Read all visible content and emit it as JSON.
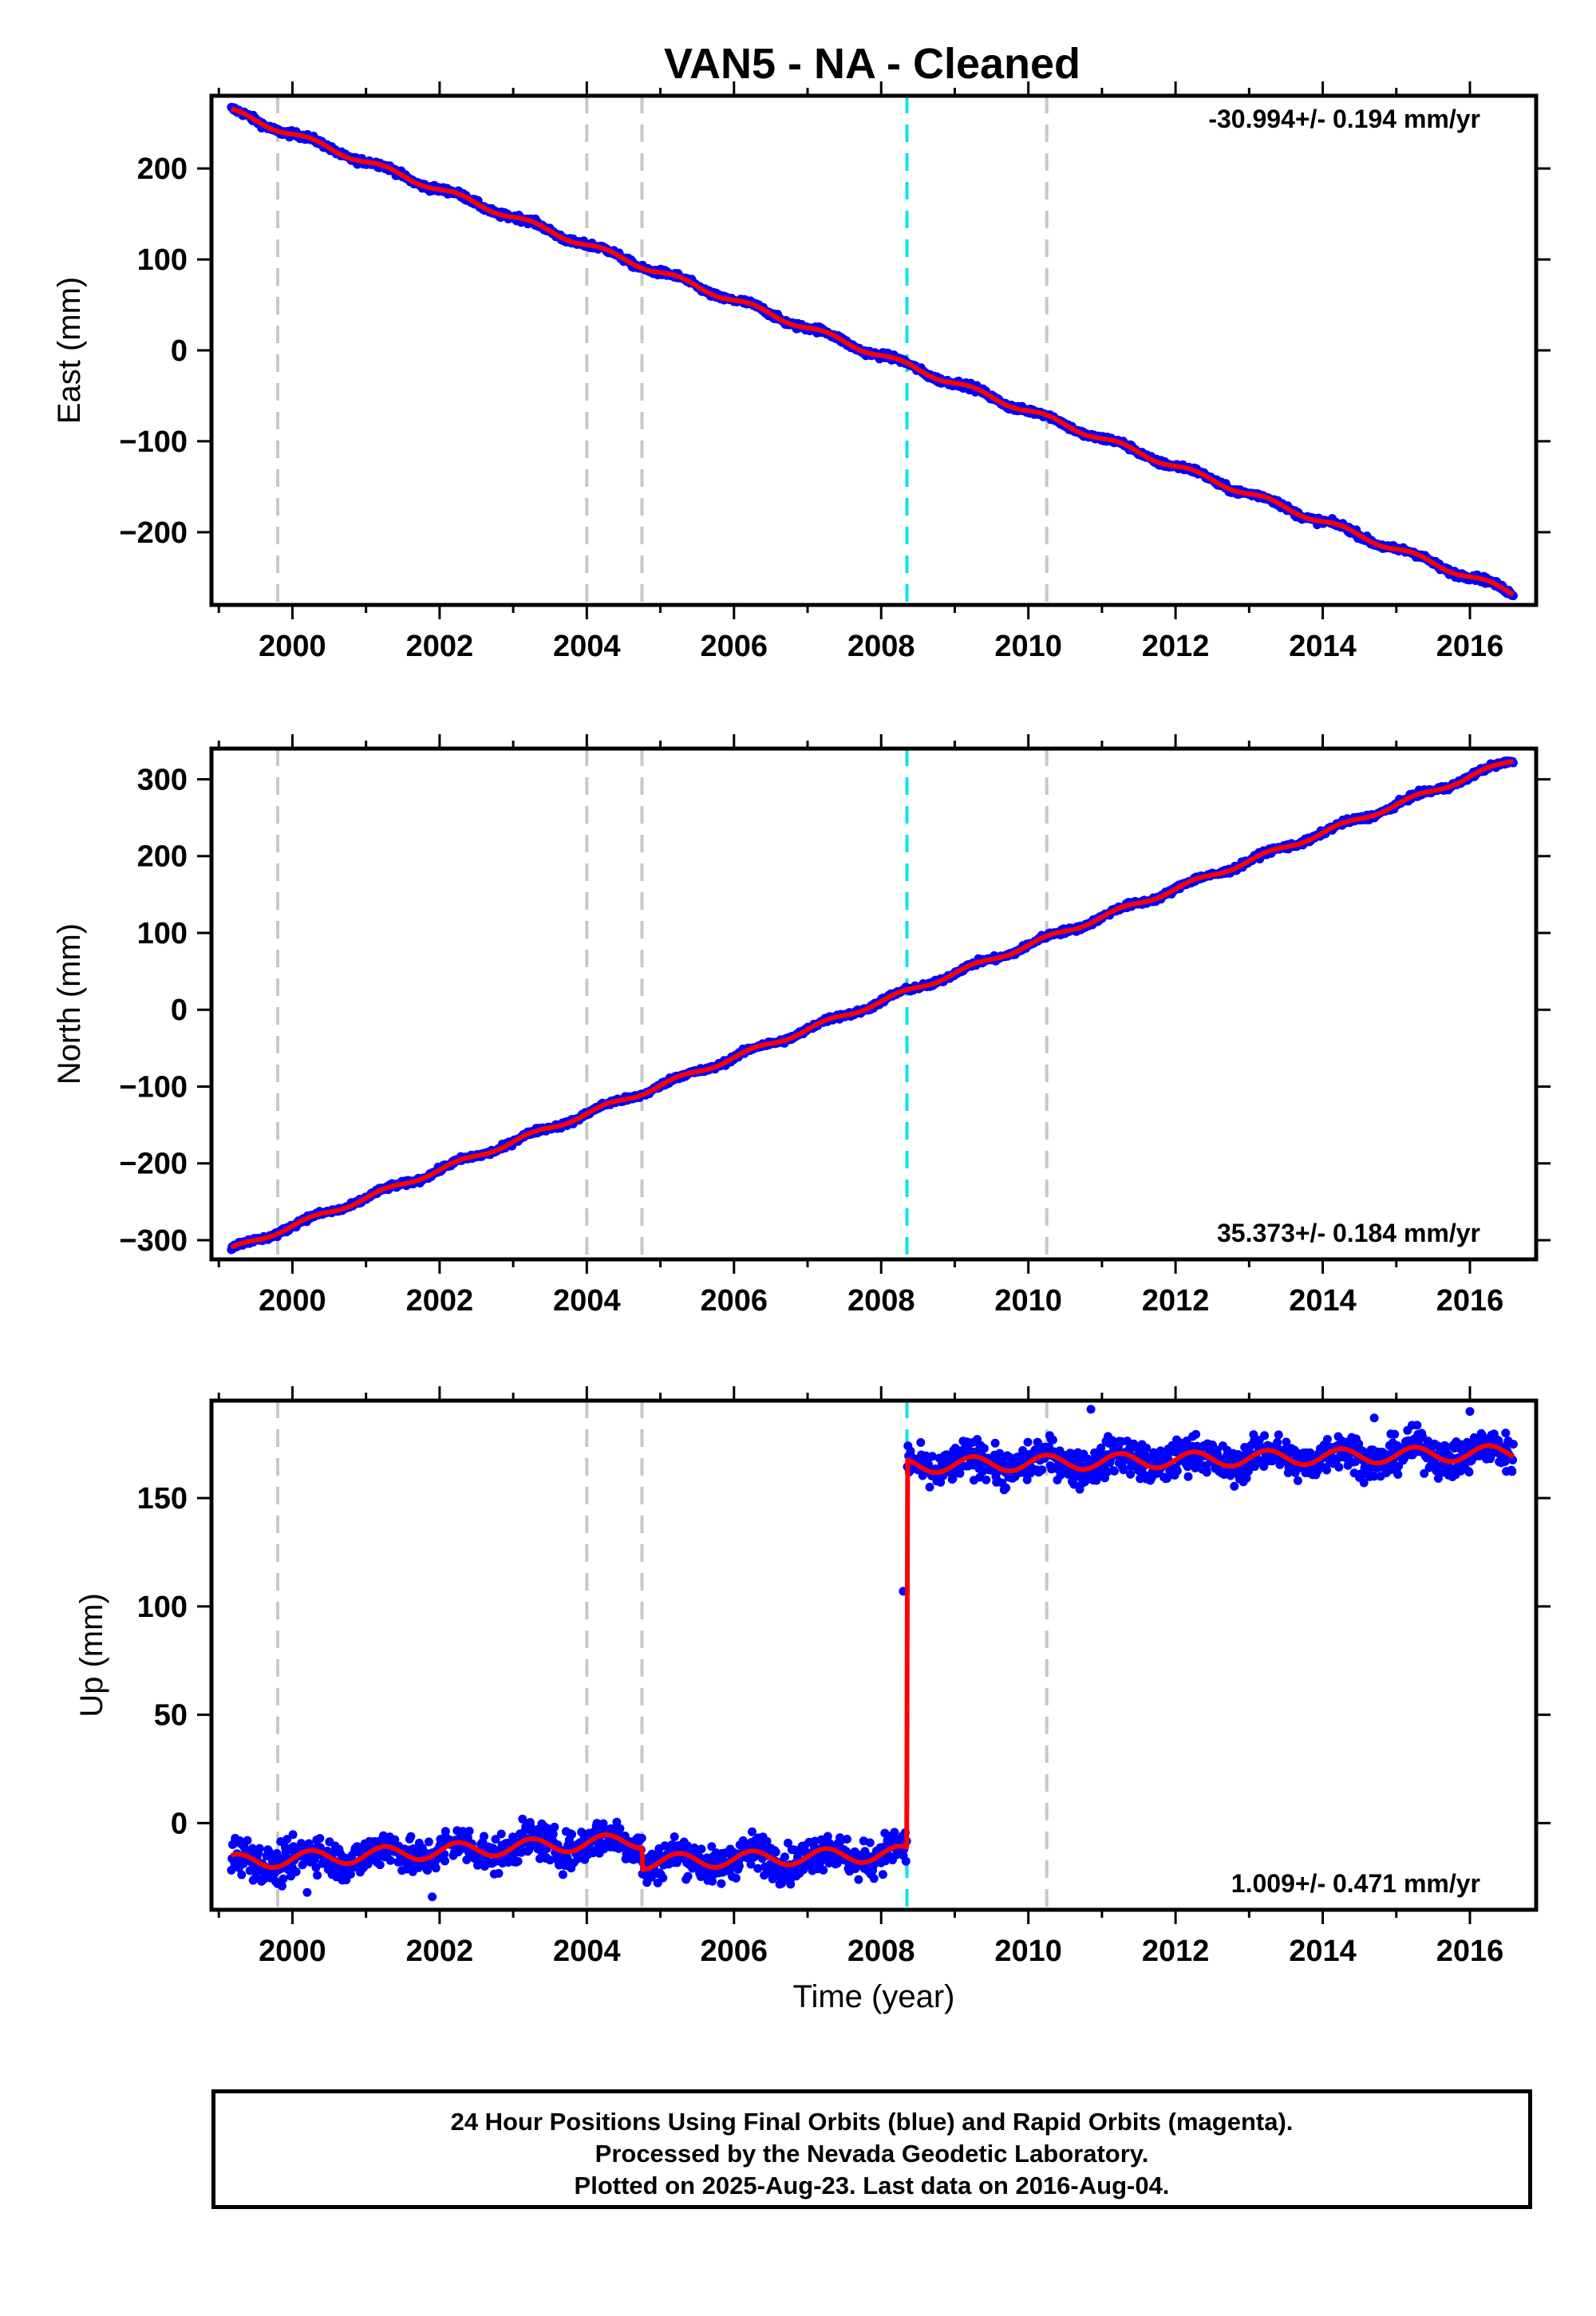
{
  "chart_data": {
    "title": "VAN5  - NA - Cleaned",
    "x_axis": {
      "label": "Time (year)",
      "range": [
        1998.9,
        2016.9
      ],
      "ticks": [
        2000,
        2002,
        2004,
        2006,
        2008,
        2010,
        2012,
        2014,
        2016
      ],
      "tick_labels": [
        "2000",
        "2002",
        "2004",
        "2006",
        "2008",
        "2010",
        "2012",
        "2014",
        "2016"
      ]
    },
    "x_range": [
      1999.17,
      2016.59
    ],
    "gray_event_years": [
      1999.8,
      2004.0,
      2004.75,
      2010.25
    ],
    "cyan_event_year": 2008.35,
    "colors": {
      "points": "#0000ff",
      "model": "#ff0000",
      "gray_event": "#c8c8c8",
      "cyan_event": "#00e5ee"
    },
    "panels": [
      {
        "key": "east",
        "type": "scatter",
        "ylabel": "East (mm)",
        "ylim": [
          -280,
          280
        ],
        "yticks": [
          -200,
          -100,
          0,
          100,
          200
        ],
        "ytick_labels": [
          "−200",
          "−100",
          "0",
          "100",
          "200"
        ],
        "rate_text": "-30.994+/- 0.194 mm/yr",
        "rate_position": "top-right",
        "model": {
          "start_value": 263,
          "end_value": -267,
          "seasonal_amplitude": 3,
          "noise": 2.5
        },
        "outliers": []
      },
      {
        "key": "north",
        "type": "scatter",
        "ylabel": "North (mm)",
        "ylim": [
          -325,
          340
        ],
        "yticks": [
          -300,
          -200,
          -100,
          0,
          100,
          200,
          300
        ],
        "ytick_labels": [
          "−300",
          "−200",
          "−100",
          "0",
          "100",
          "200",
          "300"
        ],
        "rate_text": "35.373+/- 0.184 mm/yr",
        "rate_position": "bottom-right",
        "model": {
          "start_value": -312,
          "end_value": 325,
          "seasonal_amplitude": 3,
          "noise": 2.5
        },
        "outliers": []
      },
      {
        "key": "up",
        "type": "scatter",
        "ylabel": "Up (mm)",
        "ylim": [
          -40,
          195
        ],
        "yticks": [
          0,
          50,
          100,
          150
        ],
        "ytick_labels": [
          "0",
          "50",
          "100",
          "150"
        ],
        "rate_text": "1.009+/- 0.471 mm/yr",
        "rate_position": "bottom-right",
        "segments": [
          {
            "from": 1999.17,
            "to": 2004.75,
            "start_value": -18,
            "end_value": -8
          },
          {
            "from": 2004.75,
            "to": 2008.35,
            "start_value": -18,
            "end_value": -14
          },
          {
            "from": 2008.35,
            "to": 2016.59,
            "start_value": 165,
            "end_value": 171
          }
        ],
        "seasonal_amplitude": 3.5,
        "noise": 6,
        "outliers": [
          [
            2008.3,
            107
          ],
          [
            2010.85,
            191
          ],
          [
            2001.9,
            -34
          ],
          [
            2000.2,
            -32
          ],
          [
            2016.0,
            190
          ],
          [
            2014.7,
            187
          ]
        ]
      }
    ],
    "footer": [
      "24 Hour Positions Using Final Orbits (blue) and Rapid Orbits (magenta).",
      "Processed by the Nevada Geodetic Laboratory.",
      "Plotted on 2025-Aug-23. Last data on 2016-Aug-04."
    ]
  }
}
